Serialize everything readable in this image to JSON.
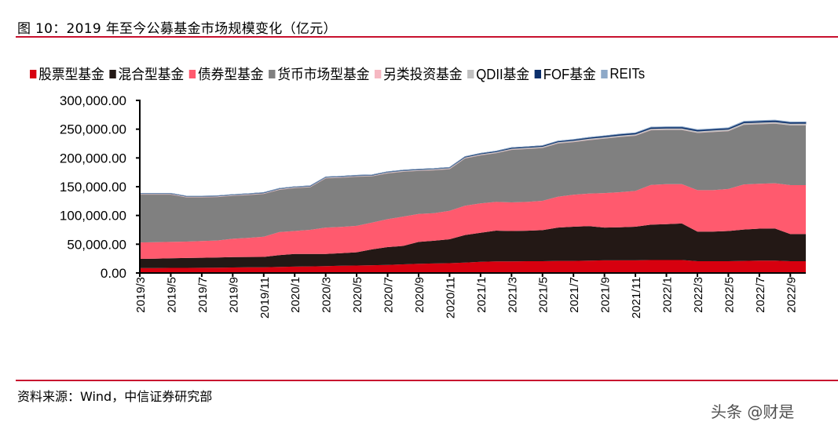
{
  "header": {
    "title": "图 10：2019 年至今公募基金市场规模变化（亿元）"
  },
  "footer": {
    "source": "资料来源：Wind，中信证券研究部"
  },
  "watermark": "头条 @财是",
  "chart_data": {
    "type": "area",
    "stacked": true,
    "title": "",
    "xlabel": "",
    "ylabel": "",
    "ylim": [
      0,
      300000
    ],
    "yticks": [
      "0.00",
      "50,000.00",
      "100,000.00",
      "150,000.00",
      "200,000.00",
      "250,000.00",
      "300,000.00"
    ],
    "ytick_values": [
      0,
      50000,
      100000,
      150000,
      200000,
      250000,
      300000
    ],
    "legend_position": "top",
    "grid": false,
    "x": [
      "2019/3",
      "2019/4",
      "2019/5",
      "2019/6",
      "2019/7",
      "2019/8",
      "2019/9",
      "2019/10",
      "2019/11",
      "2019/12",
      "2020/1",
      "2020/2",
      "2020/3",
      "2020/4",
      "2020/5",
      "2020/6",
      "2020/7",
      "2020/8",
      "2020/9",
      "2020/10",
      "2020/11",
      "2020/12",
      "2021/1",
      "2021/2",
      "2021/3",
      "2021/4",
      "2021/5",
      "2021/6",
      "2021/7",
      "2021/8",
      "2021/9",
      "2021/10",
      "2021/11",
      "2021/12",
      "2022/1",
      "2022/2",
      "2022/3",
      "2022/4",
      "2022/5",
      "2022/6",
      "2022/7",
      "2022/8",
      "2022/9",
      "2022/10"
    ],
    "xtick_labels": [
      "2019/3",
      "2019/5",
      "2019/7",
      "2019/9",
      "2019/11",
      "2020/1",
      "2020/3",
      "2020/5",
      "2020/7",
      "2020/9",
      "2020/11",
      "2021/1",
      "2021/3",
      "2021/5",
      "2021/7",
      "2021/9",
      "2021/11",
      "2022/1",
      "2022/3",
      "2022/5",
      "2022/7",
      "2022/9"
    ],
    "series": [
      {
        "name": "股票型基金",
        "color": "#d7000f",
        "values": [
          8600,
          8600,
          8800,
          8800,
          9000,
          9200,
          9500,
          9800,
          10000,
          10500,
          11000,
          11500,
          12000,
          12500,
          13000,
          13500,
          14000,
          15000,
          16000,
          16500,
          17000,
          18000,
          19500,
          20000,
          20000,
          20500,
          20500,
          21000,
          21000,
          21500,
          22000,
          22000,
          22000,
          22500,
          22500,
          22500,
          20500,
          20500,
          20500,
          21000,
          21500,
          21500,
          20500,
          20500
        ]
      },
      {
        "name": "混合型基金",
        "color": "#231815",
        "values": [
          15900,
          16400,
          16700,
          17200,
          17500,
          17800,
          18000,
          18000,
          18000,
          20500,
          22000,
          21500,
          21000,
          22000,
          23000,
          27500,
          31000,
          32000,
          38000,
          39500,
          41600,
          48000,
          50500,
          53600,
          53000,
          53000,
          54000,
          58000,
          59500,
          60000,
          57000,
          57500,
          58500,
          61500,
          62500,
          63500,
          51500,
          51500,
          52500,
          54500,
          55500,
          56000,
          47200,
          47200
        ]
      },
      {
        "name": "债券型基金",
        "color": "#ff5a6e",
        "values": [
          28500,
          28500,
          28500,
          28500,
          29000,
          29500,
          32000,
          33200,
          35000,
          40000,
          40000,
          42000,
          46000,
          45500,
          46000,
          46500,
          48600,
          51000,
          48700,
          48000,
          49400,
          51000,
          51000,
          49900,
          49700,
          50000,
          51000,
          53700,
          55500,
          56500,
          60000,
          61000,
          62200,
          69000,
          69500,
          68500,
          72000,
          72000,
          73000,
          78500,
          78000,
          78500,
          85000,
          85000
        ]
      },
      {
        "name": "货币市场型基金",
        "color": "#808080",
        "values": [
          83800,
          83300,
          82800,
          77500,
          76500,
          76000,
          75000,
          75000,
          75000,
          74000,
          75000,
          74500,
          86000,
          86000,
          85700,
          81000,
          80000,
          78500,
          75300,
          75000,
          73000,
          82500,
          84000,
          85100,
          91800,
          92500,
          92200,
          92800,
          92000,
          93400,
          95000,
          96300,
          96300,
          95600,
          94500,
          94500,
          100000,
          101500,
          101000,
          104000,
          104000,
          104000,
          104300,
          104300
        ]
      },
      {
        "name": "另类投资基金",
        "color": "#f6b8c2",
        "values": [
          400,
          400,
          400,
          400,
          400,
          400,
          400,
          400,
          400,
          400,
          400,
          400,
          400,
          400,
          400,
          400,
          400,
          400,
          400,
          400,
          400,
          400,
          400,
          400,
          400,
          400,
          400,
          400,
          400,
          400,
          400,
          400,
          400,
          400,
          400,
          400,
          300,
          300,
          300,
          300,
          300,
          300,
          300,
          300
        ]
      },
      {
        "name": "QDII基金",
        "color": "#c0c0c0",
        "values": [
          1000,
          1000,
          1000,
          1000,
          1000,
          1000,
          1000,
          1000,
          1000,
          1100,
          1100,
          1100,
          1100,
          1100,
          1200,
          1200,
          1300,
          1300,
          1300,
          1400,
          1400,
          1500,
          1600,
          1700,
          1700,
          1800,
          1800,
          1900,
          1900,
          2000,
          2000,
          2100,
          2200,
          2200,
          2300,
          2400,
          2400,
          2500,
          2600,
          2700,
          2800,
          2800,
          2800,
          2900
        ]
      },
      {
        "name": "FOF基金",
        "color": "#0b2f6b",
        "values": [
          400,
          400,
          400,
          400,
          400,
          400,
          500,
          500,
          500,
          500,
          500,
          500,
          500,
          600,
          600,
          600,
          700,
          700,
          800,
          800,
          900,
          1000,
          1100,
          1200,
          1300,
          1400,
          1500,
          1600,
          1700,
          1800,
          1900,
          2000,
          2000,
          2100,
          2200,
          2200,
          2100,
          2100,
          2100,
          2200,
          2200,
          2200,
          2100,
          2100
        ]
      },
      {
        "name": "REITs",
        "color": "#8ea9c8",
        "values": [
          0,
          0,
          0,
          0,
          0,
          0,
          0,
          0,
          0,
          0,
          0,
          0,
          0,
          0,
          0,
          0,
          0,
          0,
          0,
          0,
          0,
          0,
          0,
          0,
          0,
          0,
          0,
          300,
          300,
          300,
          300,
          300,
          300,
          400,
          400,
          400,
          500,
          500,
          500,
          600,
          600,
          600,
          600,
          600
        ]
      }
    ]
  }
}
